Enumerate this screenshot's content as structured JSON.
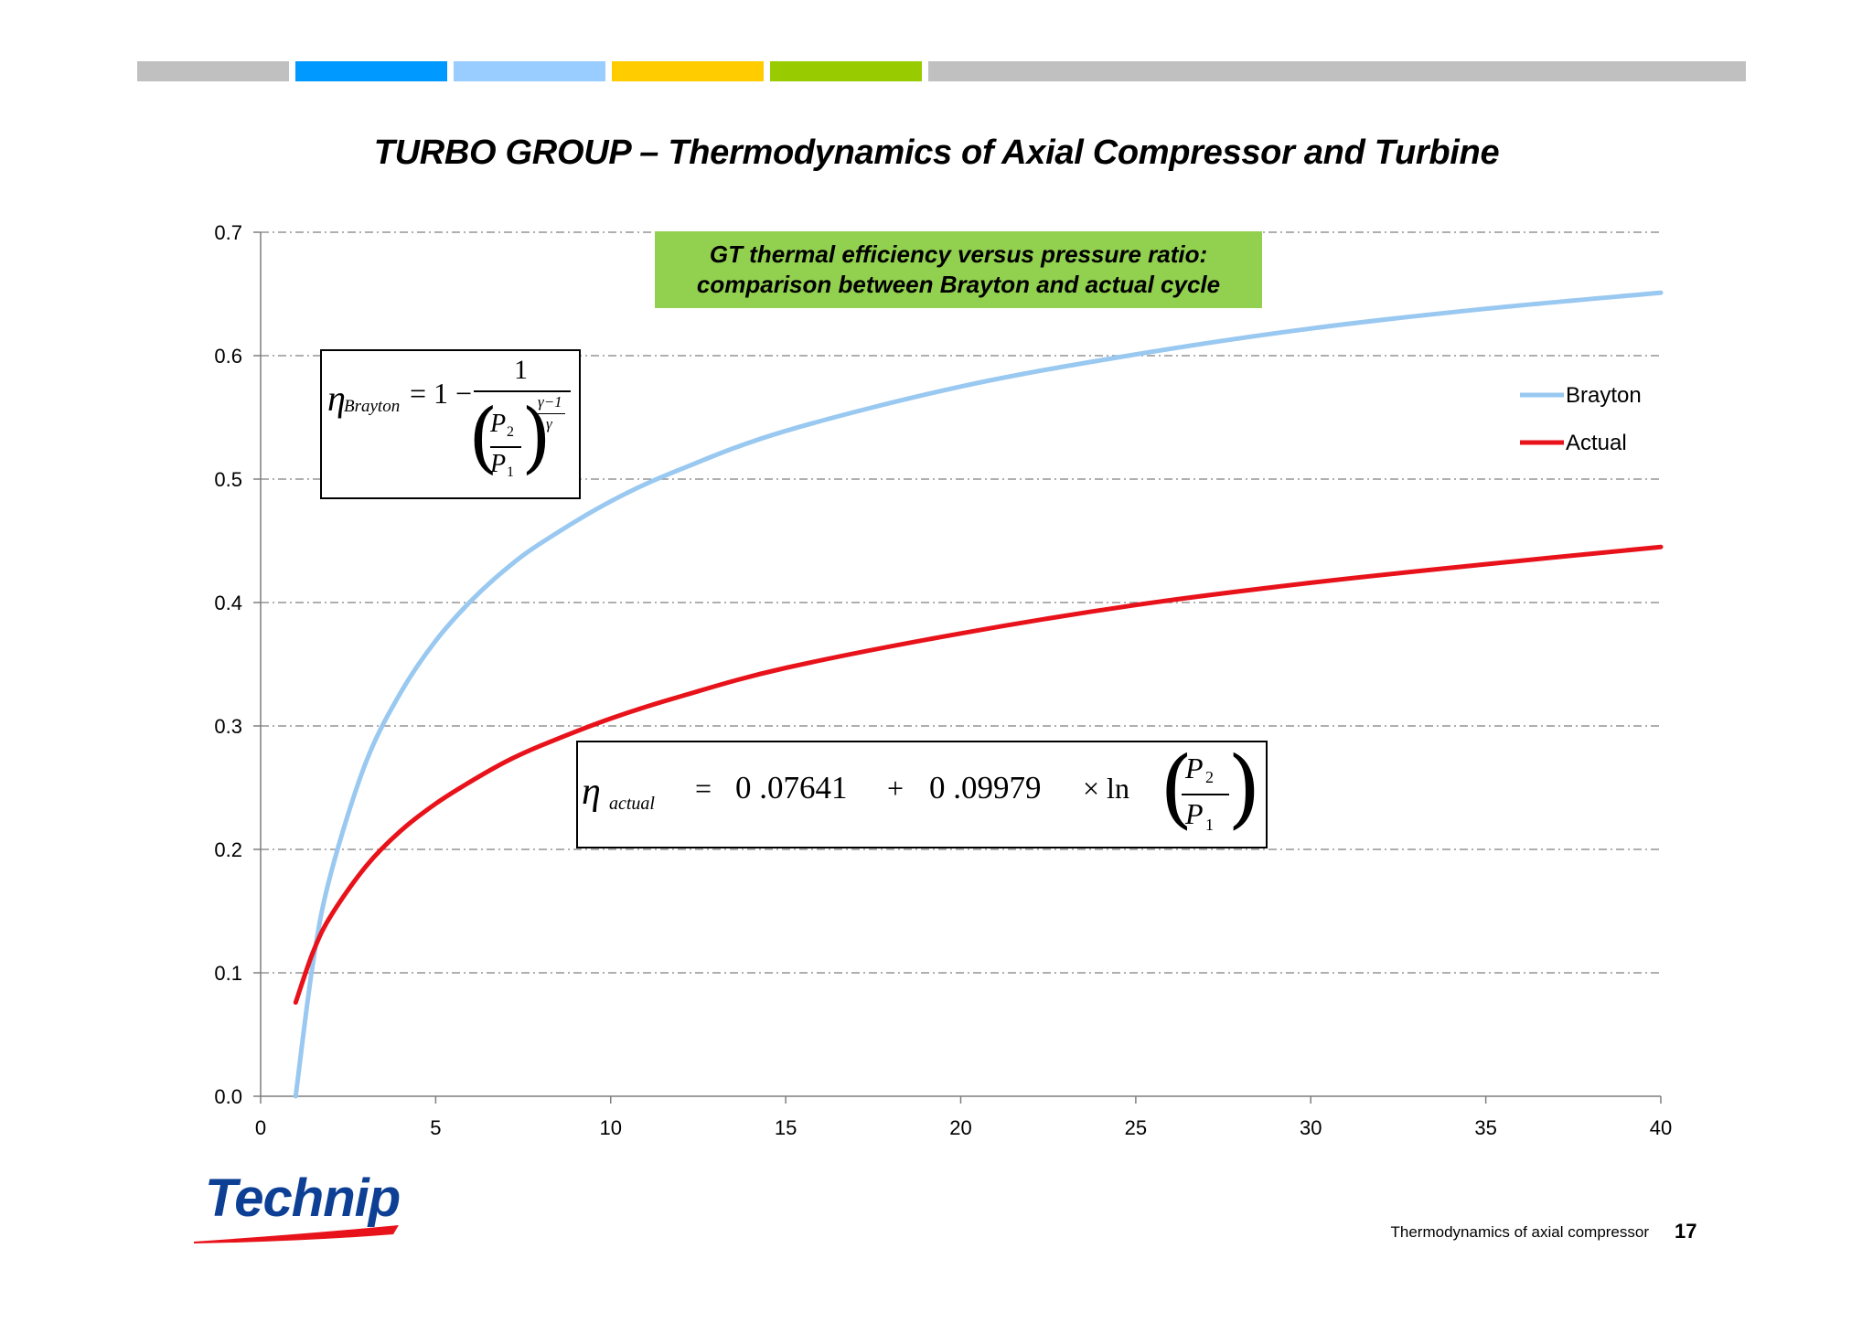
{
  "header": {
    "bands": [
      {
        "color": "#c0c0c0"
      },
      {
        "color": "#0099ff"
      },
      {
        "color": "#99ccff"
      },
      {
        "color": "#ffcc00"
      },
      {
        "color": "#99cc00"
      },
      {
        "color": "#c0c0c0"
      }
    ]
  },
  "title": "TURBO GROUP – Thermodynamics of Axial Compressor and Turbine",
  "callout": {
    "line1": "GT thermal efficiency versus pressure ratio:",
    "line2": "comparison between Brayton and actual cycle",
    "color": "#92d050"
  },
  "formula_brayton": {
    "eta": "η",
    "subscript": "Brayton",
    "equals_one_minus": "= 1 −",
    "numerator": "1",
    "p2": "P",
    "p2_sub": "2",
    "p1": "P",
    "p1_sub": "1",
    "exp_num": "γ−1",
    "exp_den": "γ"
  },
  "formula_actual": {
    "eta": "η",
    "subscript": "actual",
    "equals": "=",
    "c0": "0 .07641",
    "plus": "+",
    "c1": "0 .09979",
    "times_ln": "× ln",
    "p2": "P",
    "p2_sub": "2",
    "p1": "P",
    "p1_sub": "1"
  },
  "chart_data": {
    "type": "line",
    "title": "GT thermal efficiency versus pressure ratio: comparison between Brayton and actual cycle",
    "xlabel": "",
    "ylabel": "",
    "xlim": [
      0,
      40
    ],
    "ylim": [
      0.0,
      0.7
    ],
    "x_ticks": [
      0,
      5,
      10,
      15,
      20,
      25,
      30,
      35,
      40
    ],
    "x_tick_labels": [
      "0",
      "5",
      "10",
      "15",
      "20",
      "25",
      "30",
      "35",
      "40"
    ],
    "y_ticks": [
      0.0,
      0.1,
      0.2,
      0.3,
      0.4,
      0.5,
      0.6,
      0.7
    ],
    "y_tick_labels": [
      "0.0",
      "0.1",
      "0.2",
      "0.3",
      "0.4",
      "0.5",
      "0.6",
      "0.7"
    ],
    "grid": "horizontal dash-dot",
    "legend_position": "right",
    "x": [
      1,
      1.5,
      2,
      3,
      4,
      5,
      6,
      7,
      8,
      10,
      12,
      15,
      20,
      25,
      30,
      35,
      40
    ],
    "series": [
      {
        "name": "Brayton",
        "color": "#99c8f0",
        "values": [
          0.0,
          0.109,
          0.18,
          0.27,
          0.327,
          0.369,
          0.401,
          0.427,
          0.448,
          0.482,
          0.508,
          0.539,
          0.575,
          0.601,
          0.622,
          0.638,
          0.651
        ]
      },
      {
        "name": "Actual",
        "color": "#e8121a",
        "values": [
          0.076,
          0.117,
          0.146,
          0.186,
          0.215,
          0.237,
          0.255,
          0.271,
          0.284,
          0.306,
          0.324,
          0.347,
          0.375,
          0.398,
          0.416,
          0.431,
          0.445
        ]
      }
    ]
  },
  "logo": {
    "text": "Technip",
    "color": "#0d3f94",
    "swoosh_color": "#e8121a"
  },
  "footer": {
    "text": "Thermodynamics of  axial compressor",
    "page_number": "17"
  }
}
